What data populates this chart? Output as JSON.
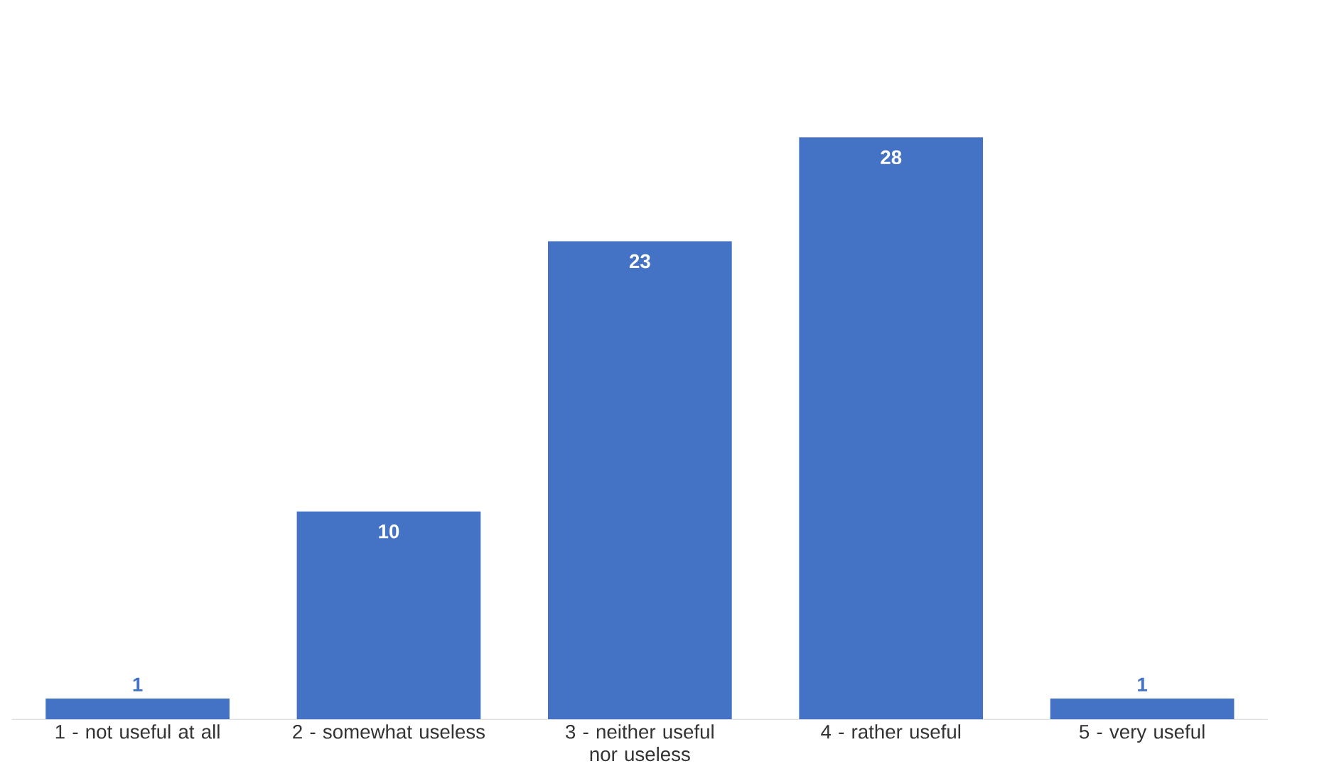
{
  "chart_data": {
    "type": "bar",
    "categories": [
      "1 - not useful at all",
      "2 - somewhat useless",
      "3 - neither useful nor useless",
      "4 - rather useful",
      "5 - very useful"
    ],
    "values": [
      1,
      10,
      23,
      28,
      1
    ],
    "color": "#4472c4",
    "data_labels": true
  }
}
